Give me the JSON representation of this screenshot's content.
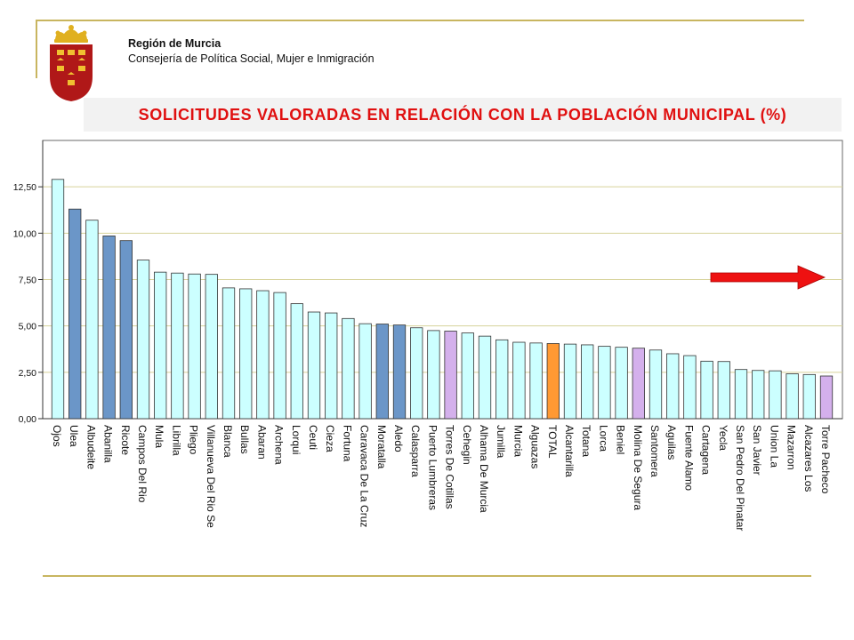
{
  "header": {
    "org_name": "Región de Murcia",
    "org_sub": "Consejería de Política Social, Mujer e Inmigración",
    "title": "SOLICITUDES VALORADAS EN RELACIÓN CON LA POBLACIÓN MUNICIPAL (%)"
  },
  "colors": {
    "rule": "#c8b560",
    "title": "#e01010",
    "bar_default": "#ccffff",
    "bar_blue": "#6b96c8",
    "bar_purple": "#d4b0ec",
    "bar_total": "#ff9933",
    "arrow": "#ee1111",
    "grid": "#d6d29a",
    "plot_bg": "#ffffff"
  },
  "chart_data": {
    "type": "bar",
    "title": "SOLICITUDES VALORADAS EN RELACIÓN CON LA POBLACIÓN MUNICIPAL (%)",
    "xlabel": "",
    "ylabel": "",
    "ylim": [
      0,
      15
    ],
    "yticks": [
      "0,00",
      "2,50",
      "5,00",
      "7,50",
      "10,00",
      "12,50"
    ],
    "ytick_values": [
      0,
      2.5,
      5,
      7.5,
      10,
      12.5
    ],
    "grid": true,
    "categories": [
      "Ojos",
      "Ulea",
      "Albudeite",
      "Abanilla",
      "Ricote",
      "Campos Del Rio",
      "Mula",
      "Librilla",
      "Pliego",
      "Villanueva Del Rio Se",
      "Blanca",
      "Bullas",
      "Abaran",
      "Archena",
      "Lorqui",
      "Ceuti",
      "Cieza",
      "Fortuna",
      "Caravaca De La Cruz",
      "Moratalla",
      "Aledo",
      "Calasparra",
      "Puerto Lumbreras",
      "Torres De Cotillas",
      "Cehegin",
      "Alhama De Murcia",
      "Jumilla",
      "Murcia",
      "Alguazas",
      "TOTAL",
      "Alcantarilla",
      "Totana",
      "Lorca",
      "Beniel",
      "Molina De Segura",
      "Santomera",
      "Aguilas",
      "Fuente Alamo",
      "Cartagena",
      "Yecla",
      "San Pedro Del Pinatar",
      "San Javier",
      "Union La",
      "Mazarron",
      "Alcazares Los",
      "Torre Pacheco"
    ],
    "values": [
      12.9,
      11.3,
      10.7,
      9.85,
      9.6,
      8.55,
      7.9,
      7.85,
      7.8,
      7.78,
      7.05,
      7.0,
      6.9,
      6.8,
      6.2,
      5.75,
      5.7,
      5.4,
      5.12,
      5.1,
      5.05,
      4.9,
      4.75,
      4.72,
      4.62,
      4.45,
      4.25,
      4.12,
      4.08,
      4.05,
      4.02,
      3.98,
      3.9,
      3.85,
      3.8,
      3.7,
      3.5,
      3.4,
      3.1,
      3.08,
      2.65,
      2.6,
      2.58,
      2.42,
      2.38,
      2.3
    ],
    "bar_color_keys": [
      "bar_default",
      "bar_blue",
      "bar_default",
      "bar_blue",
      "bar_blue",
      "bar_default",
      "bar_default",
      "bar_default",
      "bar_default",
      "bar_default",
      "bar_default",
      "bar_default",
      "bar_default",
      "bar_default",
      "bar_default",
      "bar_default",
      "bar_default",
      "bar_default",
      "bar_default",
      "bar_blue",
      "bar_blue",
      "bar_default",
      "bar_default",
      "bar_purple",
      "bar_default",
      "bar_default",
      "bar_default",
      "bar_default",
      "bar_default",
      "bar_total",
      "bar_default",
      "bar_default",
      "bar_default",
      "bar_default",
      "bar_purple",
      "bar_default",
      "bar_default",
      "bar_default",
      "bar_default",
      "bar_default",
      "bar_default",
      "bar_default",
      "bar_default",
      "bar_default",
      "bar_default",
      "bar_purple"
    ]
  }
}
